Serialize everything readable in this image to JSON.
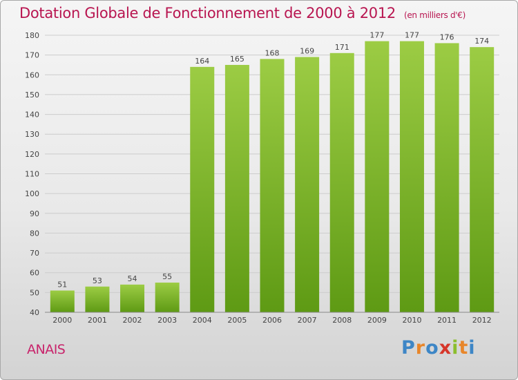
{
  "title": "Dotation Globale de Fonctionnement de 2000 à 2012",
  "unit_note": "(en milliers d'€)",
  "commune": "ANAIS",
  "brand": {
    "letters": [
      "P",
      "r",
      "o",
      "x",
      "i",
      "t",
      "i"
    ],
    "letter_colors": [
      "#3d86c6",
      "#e8862a",
      "#3d86c6",
      "#d6362a",
      "#8bbe2e",
      "#e8862a",
      "#3d86c6"
    ]
  },
  "colors": {
    "bar_top": "#9ccc44",
    "bar_bottom": "#5e9a14",
    "label": "#444444",
    "grid": "#cccccc"
  },
  "chart_data": {
    "type": "bar",
    "categories": [
      "2000",
      "2001",
      "2002",
      "2003",
      "2004",
      "2005",
      "2006",
      "2007",
      "2008",
      "2009",
      "2010",
      "2011",
      "2012"
    ],
    "values": [
      51,
      53,
      54,
      55,
      164,
      165,
      168,
      169,
      171,
      177,
      177,
      176,
      174
    ],
    "data_labels": [
      "51",
      "53",
      "54",
      "55",
      "164",
      "165",
      "168",
      "169",
      "171",
      "177",
      "177",
      "176",
      "174"
    ],
    "title": "Dotation Globale de Fonctionnement de 2000 à 2012",
    "xlabel": "",
    "ylabel": "",
    "ylim": [
      40,
      180
    ],
    "yticks": [
      40,
      50,
      60,
      70,
      80,
      90,
      100,
      110,
      120,
      130,
      140,
      150,
      160,
      170,
      180
    ],
    "ytick_labels": [
      "40",
      "50",
      "60",
      "70",
      "80",
      "90",
      "100",
      "110",
      "120",
      "130",
      "140",
      "150",
      "160",
      "170",
      "180"
    ],
    "grid": true,
    "legend": "none"
  }
}
